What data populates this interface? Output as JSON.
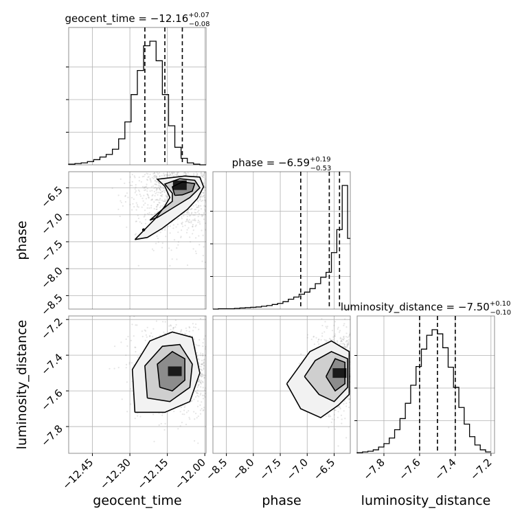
{
  "chart_data": {
    "type": "corner",
    "parameters": [
      "geocent_time",
      "phase",
      "luminosity_distance"
    ],
    "titles": [
      {
        "param": "geocent_time",
        "text": "geocent_time = −12.16",
        "sup": "+0.07",
        "sub": "−0.08"
      },
      {
        "param": "phase",
        "text": "phase = −6.59",
        "sup": "+0.19",
        "sub": "−0.53"
      },
      {
        "param": "luminosity_distance",
        "text": "luminosity_distance = −7.50",
        "sup": "+0.10",
        "sub": "−0.10"
      }
    ],
    "axis_labels": [
      "geocent_time",
      "phase",
      "luminosity_distance"
    ],
    "ranges": {
      "geocent_time": [
        -12.545,
        -11.995
      ],
      "phase": [
        -8.75,
        -6.2
      ],
      "luminosity_distance": [
        -7.95,
        -7.18
      ]
    },
    "ticks": {
      "geocent_time": [
        -12.45,
        -12.3,
        -12.15,
        -12.0
      ],
      "phase": [
        -8.5,
        -8.0,
        -7.5,
        -7.0,
        -6.5
      ],
      "luminosity_distance": [
        -7.8,
        -7.6,
        -7.4,
        -7.2
      ]
    },
    "tick_labels": {
      "geocent_time": [
        "−12.45",
        "−12.30",
        "−12.15",
        "−12.00"
      ],
      "phase": [
        "−8.5",
        "−8.0",
        "−7.5",
        "−7.0",
        "−6.5"
      ],
      "luminosity_distance": [
        "−7.8",
        "−7.6",
        "−7.4",
        "−7.2"
      ]
    },
    "quantiles": {
      "geocent_time": [
        -12.24,
        -12.16,
        -12.09
      ],
      "phase": [
        -7.12,
        -6.59,
        -6.4
      ],
      "luminosity_distance": [
        -7.6,
        -7.5,
        -7.4
      ]
    },
    "hist_1d": {
      "geocent_time": {
        "edges": [
          -12.545,
          -12.52,
          -12.495,
          -12.47,
          -12.445,
          -12.42,
          -12.395,
          -12.37,
          -12.345,
          -12.32,
          -12.295,
          -12.27,
          -12.245,
          -12.22,
          -12.195,
          -12.17,
          -12.145,
          -12.12,
          -12.095,
          -12.07,
          -12.045,
          -12.02,
          -11.995
        ],
        "counts": [
          1,
          2,
          3,
          5,
          8,
          12,
          16,
          24,
          40,
          66,
          108,
          145,
          183,
          190,
          160,
          108,
          60,
          27,
          10,
          3,
          1,
          0
        ]
      },
      "phase": {
        "edges": [
          -8.75,
          -8.65,
          -8.55,
          -8.45,
          -8.35,
          -8.25,
          -8.15,
          -8.05,
          -7.95,
          -7.85,
          -7.75,
          -7.65,
          -7.55,
          -7.45,
          -7.35,
          -7.25,
          -7.15,
          -7.05,
          -6.95,
          -6.85,
          -6.75,
          -6.65,
          -6.55,
          -6.45,
          -6.35,
          -6.25,
          -6.2
        ],
        "counts": [
          0,
          1,
          1,
          1,
          2,
          3,
          4,
          5,
          6,
          8,
          10,
          13,
          16,
          21,
          28,
          34,
          42,
          48,
          58,
          72,
          90,
          104,
          160,
          225,
          350,
          200
        ]
      },
      "luminosity_distance": {
        "edges": [
          -7.95,
          -7.92,
          -7.89,
          -7.86,
          -7.83,
          -7.8,
          -7.77,
          -7.74,
          -7.71,
          -7.68,
          -7.65,
          -7.62,
          -7.59,
          -7.56,
          -7.53,
          -7.5,
          -7.47,
          -7.44,
          -7.41,
          -7.38,
          -7.35,
          -7.32,
          -7.29,
          -7.26,
          -7.23,
          -7.2
        ],
        "counts": [
          1,
          2,
          3,
          5,
          9,
          14,
          22,
          34,
          50,
          72,
          98,
          125,
          150,
          170,
          178,
          172,
          152,
          124,
          95,
          66,
          42,
          24,
          12,
          5,
          2
        ]
      }
    },
    "contours_2d": [
      {
        "x": "geocent_time",
        "y": "phase",
        "center": [
          -12.1,
          -6.45
        ],
        "spread": [
          0.07,
          0.35
        ],
        "levels": [
          [
            [
              -12.28,
              -7.46
            ],
            [
              -12.2,
              -7.08
            ],
            [
              -12.16,
              -6.84
            ],
            [
              -12.14,
              -6.68
            ],
            [
              -12.16,
              -6.47
            ],
            [
              -12.19,
              -6.34
            ],
            [
              -12.08,
              -6.28
            ],
            [
              -12.02,
              -6.3
            ],
            [
              -12.005,
              -6.48
            ],
            [
              -12.03,
              -6.7
            ],
            [
              -12.07,
              -6.9
            ],
            [
              -12.17,
              -7.25
            ],
            [
              -12.23,
              -7.42
            ],
            [
              -12.28,
              -7.46
            ]
          ],
          [
            [
              -12.22,
              -7.1
            ],
            [
              -12.17,
              -6.9
            ],
            [
              -12.13,
              -6.75
            ],
            [
              -12.13,
              -6.6
            ],
            [
              -12.16,
              -6.43
            ],
            [
              -12.1,
              -6.33
            ],
            [
              -12.04,
              -6.36
            ],
            [
              -12.02,
              -6.5
            ],
            [
              -12.06,
              -6.68
            ],
            [
              -12.12,
              -6.85
            ],
            [
              -12.19,
              -7.05
            ],
            [
              -12.22,
              -7.1
            ]
          ],
          [
            [
              -12.12,
              -6.64
            ],
            [
              -12.13,
              -6.48
            ],
            [
              -12.09,
              -6.39
            ],
            [
              -12.04,
              -6.42
            ],
            [
              -12.05,
              -6.56
            ],
            [
              -12.09,
              -6.63
            ],
            [
              -12.12,
              -6.64
            ]
          ]
        ]
      },
      {
        "x": "geocent_time",
        "y": "luminosity_distance",
        "center": [
          -12.12,
          -7.49
        ],
        "spread": [
          0.06,
          0.085
        ],
        "levels": [
          [
            [
              -12.28,
              -7.72
            ],
            [
              -12.29,
              -7.48
            ],
            [
              -12.22,
              -7.32
            ],
            [
              -12.13,
              -7.27
            ],
            [
              -12.05,
              -7.3
            ],
            [
              -12.02,
              -7.5
            ],
            [
              -12.06,
              -7.66
            ],
            [
              -12.16,
              -7.72
            ],
            [
              -12.28,
              -7.72
            ]
          ],
          [
            [
              -12.23,
              -7.64
            ],
            [
              -12.24,
              -7.46
            ],
            [
              -12.17,
              -7.35
            ],
            [
              -12.1,
              -7.34
            ],
            [
              -12.05,
              -7.45
            ],
            [
              -12.06,
              -7.58
            ],
            [
              -12.14,
              -7.66
            ],
            [
              -12.23,
              -7.64
            ]
          ],
          [
            [
              -12.18,
              -7.58
            ],
            [
              -12.19,
              -7.45
            ],
            [
              -12.13,
              -7.38
            ],
            [
              -12.08,
              -7.42
            ],
            [
              -12.08,
              -7.54
            ],
            [
              -12.13,
              -7.6
            ],
            [
              -12.18,
              -7.58
            ]
          ]
        ]
      },
      {
        "x": "phase",
        "y": "luminosity_distance",
        "center": [
          -6.4,
          -7.5
        ],
        "spread": [
          0.2,
          0.08
        ],
        "levels": [
          [
            [
              -7.38,
              -7.56
            ],
            [
              -7.12,
              -7.7
            ],
            [
              -6.75,
              -7.75
            ],
            [
              -6.42,
              -7.68
            ],
            [
              -6.22,
              -7.62
            ],
            [
              -6.22,
              -7.38
            ],
            [
              -6.55,
              -7.32
            ],
            [
              -6.95,
              -7.38
            ],
            [
              -7.38,
              -7.56
            ]
          ],
          [
            [
              -7.05,
              -7.52
            ],
            [
              -6.78,
              -7.62
            ],
            [
              -6.5,
              -7.66
            ],
            [
              -6.25,
              -7.58
            ],
            [
              -6.25,
              -7.42
            ],
            [
              -6.55,
              -7.38
            ],
            [
              -6.85,
              -7.43
            ],
            [
              -7.05,
              -7.52
            ]
          ],
          [
            [
              -6.65,
              -7.52
            ],
            [
              -6.48,
              -7.6
            ],
            [
              -6.3,
              -7.56
            ],
            [
              -6.3,
              -7.44
            ],
            [
              -6.48,
              -7.42
            ],
            [
              -6.65,
              -7.52
            ]
          ]
        ]
      }
    ],
    "marker": {
      "x": "geocent_time",
      "y": "phase",
      "value": [
        -12.245,
        -7.28
      ]
    }
  }
}
